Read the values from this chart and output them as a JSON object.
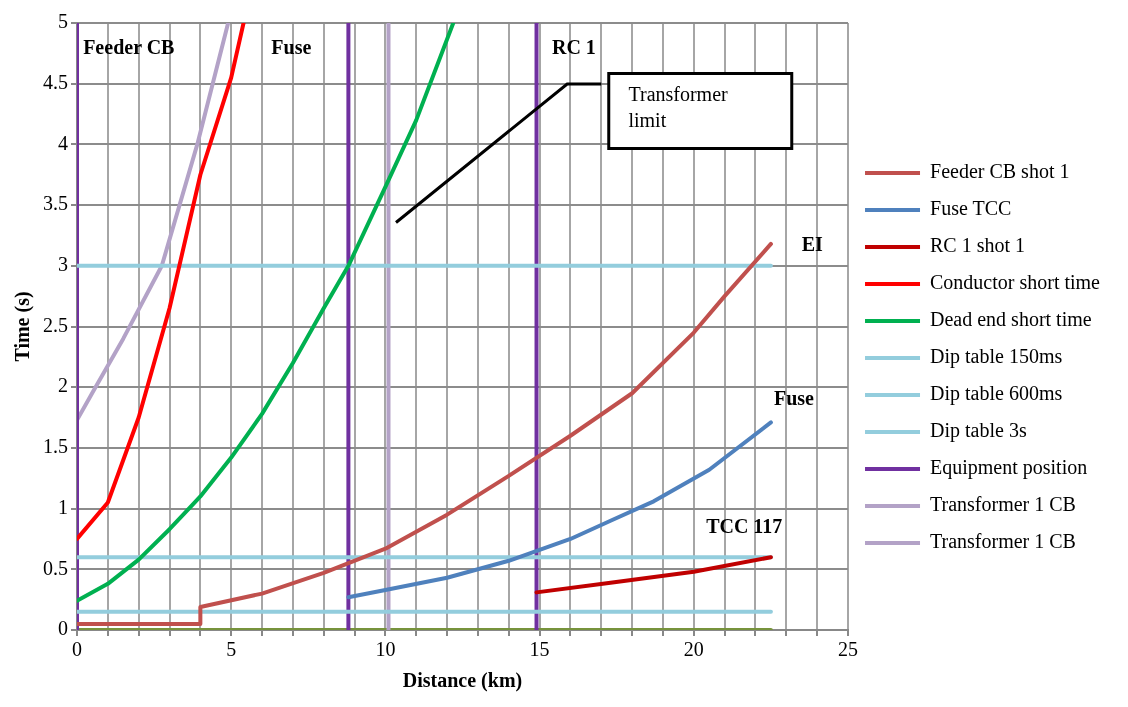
{
  "chart_data": {
    "type": "line",
    "xlabel": "Distance (km)",
    "ylabel": "Time (s)",
    "xlim": [
      0,
      25
    ],
    "ylim": [
      0,
      5
    ],
    "xticks": [
      0,
      {
        "value": 1,
        "label": null
      },
      {
        "value": 2,
        "label": null
      },
      {
        "value": 3,
        "label": null
      },
      {
        "value": 4,
        "label": null
      },
      5,
      {
        "value": 6,
        "label": null
      },
      {
        "value": 7,
        "label": null
      },
      {
        "value": 8,
        "label": null
      },
      {
        "value": 9,
        "label": null
      },
      10,
      {
        "value": 11,
        "label": null
      },
      {
        "value": 12,
        "label": null
      },
      {
        "value": 13,
        "label": null
      },
      {
        "value": 14,
        "label": null
      },
      15,
      {
        "value": 16,
        "label": null
      },
      {
        "value": 17,
        "label": null
      },
      {
        "value": 18,
        "label": null
      },
      {
        "value": 19,
        "label": null
      },
      20,
      {
        "value": 21,
        "label": null
      },
      {
        "value": 22,
        "label": null
      },
      {
        "value": 23,
        "label": null
      },
      {
        "value": 24,
        "label": null
      },
      25
    ],
    "yticks": [
      0,
      0.5,
      1,
      1.5,
      2,
      2.5,
      3,
      3.5,
      4,
      4.5,
      5
    ],
    "grid": true,
    "legend": "right",
    "marker": "none",
    "line_style": "solid",
    "series": [
      {
        "name": "Feeder CB shot 1",
        "color": "#c0504d",
        "x": [
          0,
          4,
          4,
          6,
          8,
          10,
          12,
          14,
          16,
          18,
          20,
          21,
          22.5
        ],
        "values": [
          0.05,
          0.05,
          0.19,
          0.3,
          0.47,
          0.67,
          0.95,
          1.27,
          1.6,
          1.95,
          2.45,
          2.75,
          3.18
        ]
      },
      {
        "name": "Fuse TCC",
        "color": "#4f81bd",
        "x": [
          8.8,
          10,
          12,
          14,
          15,
          16,
          17.3,
          18.7,
          20.5,
          22.5
        ],
        "values": [
          0.27,
          0.33,
          0.43,
          0.57,
          0.66,
          0.75,
          0.9,
          1.06,
          1.32,
          1.71
        ]
      },
      {
        "name": "RC 1 shot 1",
        "color": "#c00000",
        "x": [
          14.9,
          17.3,
          20,
          22.5
        ],
        "values": [
          0.31,
          0.39,
          0.48,
          0.6
        ]
      },
      {
        "name": "Conductor short time",
        "color": "#ff0000",
        "x": [
          0,
          1,
          2,
          3,
          4,
          5,
          5.4
        ],
        "values": [
          0.75,
          1.05,
          1.75,
          2.65,
          3.75,
          4.55,
          5
        ]
      },
      {
        "name": "Dead end short time",
        "color": "#00b050",
        "x": [
          0,
          1,
          2,
          3,
          4,
          5,
          6,
          7,
          8,
          8.8,
          10,
          11,
          12.2
        ],
        "values": [
          0.24,
          0.38,
          0.58,
          0.83,
          1.1,
          1.42,
          1.78,
          2.2,
          2.65,
          3.0,
          3.65,
          4.2,
          5
        ]
      },
      {
        "name": "Dip table 150ms",
        "color": "#93cddd",
        "x": [
          0,
          22.5
        ],
        "values": [
          0.15,
          0.15
        ]
      },
      {
        "name": "Dip table 600ms",
        "color": "#93cddd",
        "x": [
          0,
          22.5
        ],
        "values": [
          0.6,
          0.6
        ]
      },
      {
        "name": "Dip table 3s",
        "color": "#93cddd",
        "x": [
          0,
          22.5
        ],
        "values": [
          3,
          3
        ]
      },
      {
        "name": "Equipment position",
        "color": "#7030a0",
        "x": [
          0,
          0,
          4,
          8.8,
          8.8,
          12,
          14.9,
          14.9
        ],
        "values": [
          0,
          5,
          null,
          0,
          5,
          null,
          0,
          5
        ]
      },
      {
        "name": "Transformer 1 CB",
        "color": "#b3a2c7",
        "x": [
          0,
          0.6,
          1.5,
          2.75,
          3.9,
          4.9
        ],
        "values": [
          1.73,
          2,
          2.4,
          3,
          4,
          5
        ]
      },
      {
        "name": "Transformer 1 CB",
        "color": "#b3a2c7",
        "x": [
          10.1,
          10.1
        ],
        "values": [
          0,
          5
        ]
      },
      {
        "color": "#77933c",
        "x": [
          0,
          22.5
        ],
        "values": [
          0,
          0
        ]
      }
    ],
    "annotations": [
      "Feeder CB",
      "Fuse",
      "RC 1",
      "EI",
      "Fuse",
      "TCC 117",
      "Transformer limit"
    ]
  }
}
